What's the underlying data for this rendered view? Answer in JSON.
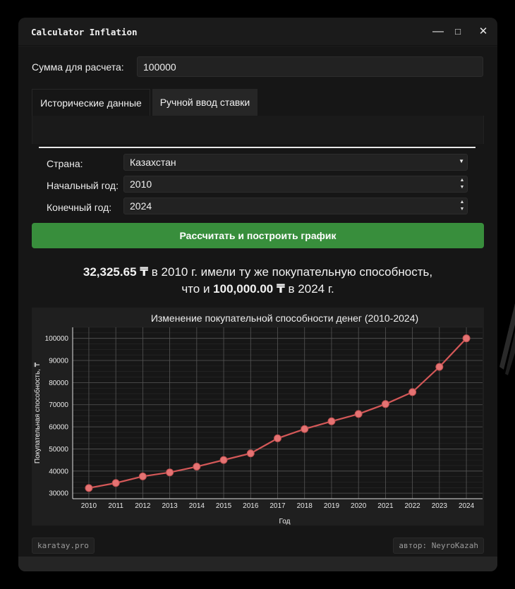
{
  "window": {
    "title": "Calculator Inflation",
    "minimize_glyph": "—",
    "maximize_glyph": "□",
    "close_glyph": "✕"
  },
  "amount": {
    "label": "Сумма для расчета:",
    "value": "100000"
  },
  "tabs": [
    {
      "label": "Исторические данные",
      "active": true
    },
    {
      "label": "Ручной ввод ставки",
      "active": false
    }
  ],
  "form": {
    "country_label": "Страна:",
    "country_value": "Казахстан",
    "start_year_label": "Начальный год:",
    "start_year_value": "2010",
    "end_year_label": "Конечный год:",
    "end_year_value": "2024"
  },
  "calculate_button": "Рассчитать и построить график",
  "result": {
    "amount_start": "32,325.65 ₸",
    "text_1": " в 2010 г. имели ту же покупательную способность,",
    "text_2": "что и ",
    "amount_end": "100,000.00 ₸",
    "text_3": " в 2024 г."
  },
  "chart_data": {
    "type": "line",
    "title": "Изменение покупательной способности денег (2010-2024)",
    "xlabel": "Год",
    "ylabel": "Покупательная способность, ₸",
    "x": [
      2010,
      2011,
      2012,
      2013,
      2014,
      2015,
      2016,
      2017,
      2018,
      2019,
      2020,
      2021,
      2022,
      2023,
      2024
    ],
    "y": [
      32326,
      34600,
      37600,
      39400,
      42000,
      45000,
      48000,
      54800,
      59000,
      62500,
      65800,
      70300,
      75700,
      87100,
      100000
    ],
    "ylim": [
      27500,
      105000
    ],
    "yticks": [
      30000,
      40000,
      50000,
      60000,
      70000,
      80000,
      90000,
      100000
    ],
    "grid": true,
    "line_color": "#d45858",
    "marker_color": "#e57373"
  },
  "footer": {
    "left": "karatay.pro",
    "right": "автор: NeyroKazah"
  }
}
